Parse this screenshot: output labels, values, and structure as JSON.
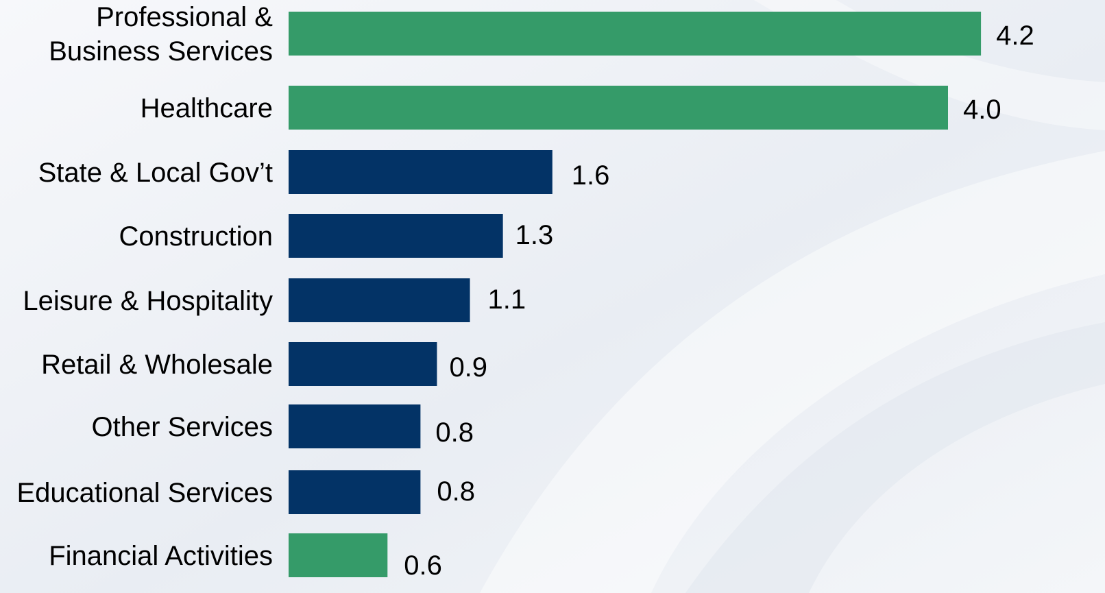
{
  "chart_data": {
    "type": "bar",
    "orientation": "horizontal",
    "categories": [
      "Professional & Business Services",
      "Healthcare",
      "State & Local Gov’t",
      "Construction",
      "Leisure  & Hospitality",
      "Retail & Wholesale",
      "Other Services",
      "Educational Services",
      "Financial Activities"
    ],
    "category_lines": [
      [
        "Professional &",
        "Business Services"
      ],
      [
        "Healthcare"
      ],
      [
        "State & Local Gov’t"
      ],
      [
        "Construction"
      ],
      [
        "Leisure  & Hospitality"
      ],
      [
        "Retail & Wholesale"
      ],
      [
        "Other Services"
      ],
      [
        "Educational Services"
      ],
      [
        "Financial Activities"
      ]
    ],
    "values": [
      4.2,
      4.0,
      1.6,
      1.3,
      1.1,
      0.9,
      0.8,
      0.8,
      0.6
    ],
    "value_labels": [
      "4.2",
      "4.0",
      "1.6",
      "1.3",
      "1.1",
      "0.9",
      "0.8",
      "0.8",
      "0.6"
    ],
    "bar_colors": [
      "#359b69",
      "#359b69",
      "#033366",
      "#033366",
      "#033366",
      "#033366",
      "#033366",
      "#033366",
      "#359b69"
    ],
    "colors": {
      "highlight": "#359b69",
      "default": "#033366"
    },
    "title": "",
    "xlabel": "",
    "ylabel": "",
    "xlim": [
      0,
      4.3
    ],
    "grid": false,
    "legend": "none"
  }
}
